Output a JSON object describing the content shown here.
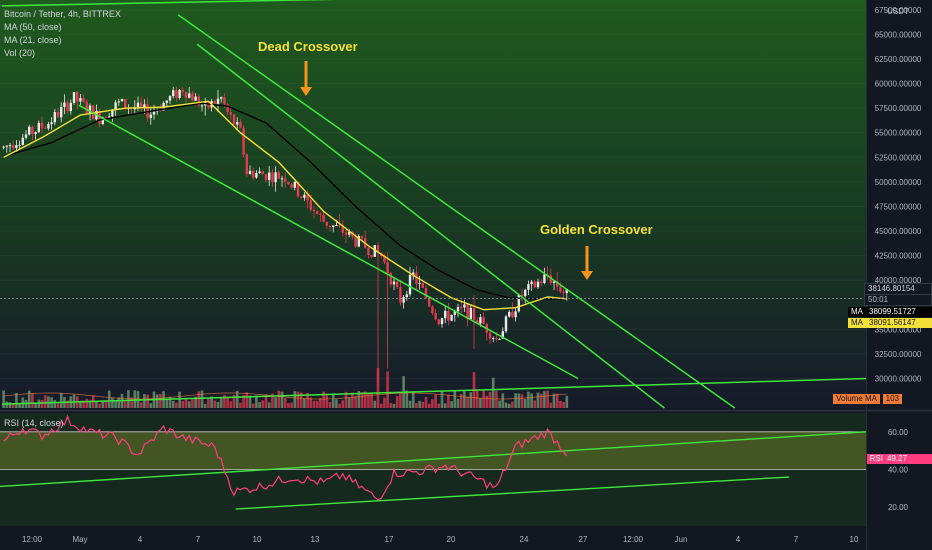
{
  "title": "Bitcoin / Tether, 4h, BITTREX",
  "indicators": {
    "ma50": "MA (50, close)",
    "ma21": "MA (21, close)",
    "vol": "Vol (20)",
    "rsi": "RSI (14, close)"
  },
  "annotations": {
    "dead": "Dead Crossover",
    "golden": "Golden Crossover"
  },
  "price_axis": {
    "currency": "USDT",
    "ticks": [
      "67500.00000",
      "65000.00000",
      "62500.00000",
      "60000.00000",
      "57500.00000",
      "55000.00000",
      "52500.00000",
      "50000.00000",
      "47500.00000",
      "45000.00000",
      "42500.00000",
      "40000.00000",
      "35000.00000",
      "32500.00000",
      "30000.00000"
    ]
  },
  "labels": {
    "last_price": "38146.80154",
    "countdown": "50:01",
    "ma_tag": "MA",
    "ma50_value": "38099.51727",
    "ma21_value": "38091.56147",
    "volume_ma_label": "Volume MA",
    "volume_ma_value": "103",
    "rsi_tag": "RSI",
    "rsi_value": "49.27"
  },
  "rsi_axis": {
    "ticks": [
      "60.00",
      "40.00",
      "20.00"
    ]
  },
  "time_axis": {
    "labels": [
      "12:00",
      "May",
      "4",
      "7",
      "10",
      "13",
      "17",
      "20",
      "24",
      "27",
      "12:00",
      "Jun",
      "4",
      "7",
      "10"
    ]
  },
  "colors": {
    "background": "#131722",
    "up": "#e8e8e8",
    "down": "#e8394d",
    "ma21": "#f5e03a",
    "ma50": "#000000",
    "trendline": "#3ee83a",
    "annotation_text": "#f5e03a",
    "arrow": "#f7931a",
    "rsi_line": "#ff3d7f",
    "rsi_band": "#6b7a2a"
  },
  "chart_data": {
    "type": "candlestick",
    "symbol": "BTC/USDT",
    "interval": "4h",
    "exchange": "BITTREX",
    "y_range": [
      27000,
      68500
    ],
    "rsi_range": [
      10,
      70
    ],
    "rsi_levels": [
      60,
      40
    ],
    "price": {
      "start": 53500,
      "path": [
        [
          0,
          53500
        ],
        [
          14,
          56000
        ],
        [
          22,
          58500
        ],
        [
          30,
          56500
        ],
        [
          36,
          58000
        ],
        [
          46,
          57000
        ],
        [
          56,
          59500
        ],
        [
          63,
          57500
        ],
        [
          68,
          58500
        ],
        [
          70,
          57000
        ],
        [
          74,
          55000
        ],
        [
          76,
          51000
        ],
        [
          88,
          50500
        ],
        [
          100,
          46000
        ],
        [
          106,
          45000
        ],
        [
          110,
          44000
        ],
        [
          118,
          42500
        ],
        [
          124,
          38000
        ],
        [
          128,
          40500
        ],
        [
          136,
          36000
        ],
        [
          144,
          37000
        ],
        [
          150,
          35500
        ],
        [
          154,
          34000
        ],
        [
          162,
          38500
        ],
        [
          170,
          40500
        ],
        [
          176,
          38500
        ]
      ],
      "spikes": [
        {
          "i": 120,
          "low": 31000,
          "high": 37500
        },
        {
          "i": 147,
          "low": 33000,
          "high": 38500
        },
        {
          "i": 117,
          "low": 29300,
          "high": 38800
        }
      ]
    },
    "ma21": [
      [
        0,
        52500
      ],
      [
        12,
        54500
      ],
      [
        24,
        56800
      ],
      [
        38,
        57500
      ],
      [
        50,
        57600
      ],
      [
        64,
        58200
      ],
      [
        74,
        55000
      ],
      [
        86,
        52000
      ],
      [
        100,
        47000
      ],
      [
        114,
        43500
      ],
      [
        128,
        40500
      ],
      [
        140,
        38200
      ],
      [
        150,
        37000
      ],
      [
        160,
        37200
      ],
      [
        170,
        38300
      ],
      [
        176,
        38100
      ]
    ],
    "ma50": [
      [
        0,
        52600
      ],
      [
        15,
        54000
      ],
      [
        30,
        56300
      ],
      [
        50,
        57400
      ],
      [
        62,
        58000
      ],
      [
        70,
        57700
      ],
      [
        82,
        56000
      ],
      [
        96,
        52000
      ],
      [
        110,
        47500
      ],
      [
        124,
        43500
      ],
      [
        136,
        41000
      ],
      [
        148,
        39000
      ],
      [
        158,
        38200
      ],
      [
        168,
        38100
      ],
      [
        176,
        38100
      ]
    ],
    "volume_ma": 103,
    "volume_spike_indices": [
      120,
      117,
      147,
      125,
      153
    ],
    "rsi": [
      [
        0,
        55
      ],
      [
        6,
        62
      ],
      [
        12,
        58
      ],
      [
        20,
        66
      ],
      [
        27,
        60
      ],
      [
        35,
        57
      ],
      [
        42,
        48
      ],
      [
        50,
        62
      ],
      [
        56,
        57
      ],
      [
        66,
        52
      ],
      [
        72,
        28
      ],
      [
        80,
        31
      ],
      [
        90,
        36
      ],
      [
        100,
        33
      ],
      [
        106,
        37
      ],
      [
        112,
        30
      ],
      [
        117,
        24
      ],
      [
        122,
        38
      ],
      [
        130,
        39
      ],
      [
        138,
        42
      ],
      [
        148,
        35
      ],
      [
        154,
        30
      ],
      [
        160,
        52
      ],
      [
        170,
        60
      ],
      [
        176,
        49
      ]
    ],
    "last_price": 38146.80154,
    "ma50_last": 38099.51727,
    "ma21_last": 38091.56147,
    "rsi_last": 49.27
  }
}
